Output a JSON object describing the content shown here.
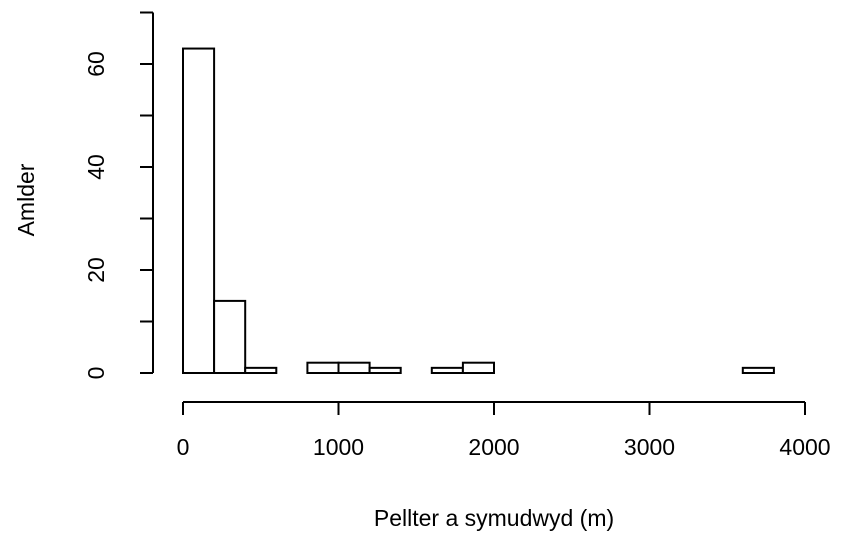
{
  "chart_data": {
    "type": "bar",
    "title": "",
    "xlabel": "Pellter a symudwyd (m)",
    "ylabel": "Amlder",
    "xlim": [
      0,
      4000
    ],
    "ylim": [
      0,
      70
    ],
    "x_ticks": [
      "0",
      "1000",
      "2000",
      "3000",
      "4000"
    ],
    "y_ticks": [
      "0",
      "20",
      "40",
      "60"
    ],
    "grid": false,
    "bins": [
      {
        "start": 0,
        "end": 200,
        "count": 63
      },
      {
        "start": 200,
        "end": 400,
        "count": 14
      },
      {
        "start": 400,
        "end": 600,
        "count": 1
      },
      {
        "start": 600,
        "end": 800,
        "count": 0
      },
      {
        "start": 800,
        "end": 1000,
        "count": 2
      },
      {
        "start": 1000,
        "end": 1200,
        "count": 2
      },
      {
        "start": 1200,
        "end": 1400,
        "count": 1
      },
      {
        "start": 1400,
        "end": 1600,
        "count": 0
      },
      {
        "start": 1600,
        "end": 1800,
        "count": 1
      },
      {
        "start": 1800,
        "end": 2000,
        "count": 2
      },
      {
        "start": 2000,
        "end": 2200,
        "count": 0
      },
      {
        "start": 2200,
        "end": 2400,
        "count": 0
      },
      {
        "start": 2400,
        "end": 2600,
        "count": 0
      },
      {
        "start": 2600,
        "end": 2800,
        "count": 0
      },
      {
        "start": 2800,
        "end": 3000,
        "count": 0
      },
      {
        "start": 3000,
        "end": 3200,
        "count": 0
      },
      {
        "start": 3200,
        "end": 3400,
        "count": 0
      },
      {
        "start": 3400,
        "end": 3600,
        "count": 0
      },
      {
        "start": 3600,
        "end": 3800,
        "count": 1
      }
    ]
  }
}
